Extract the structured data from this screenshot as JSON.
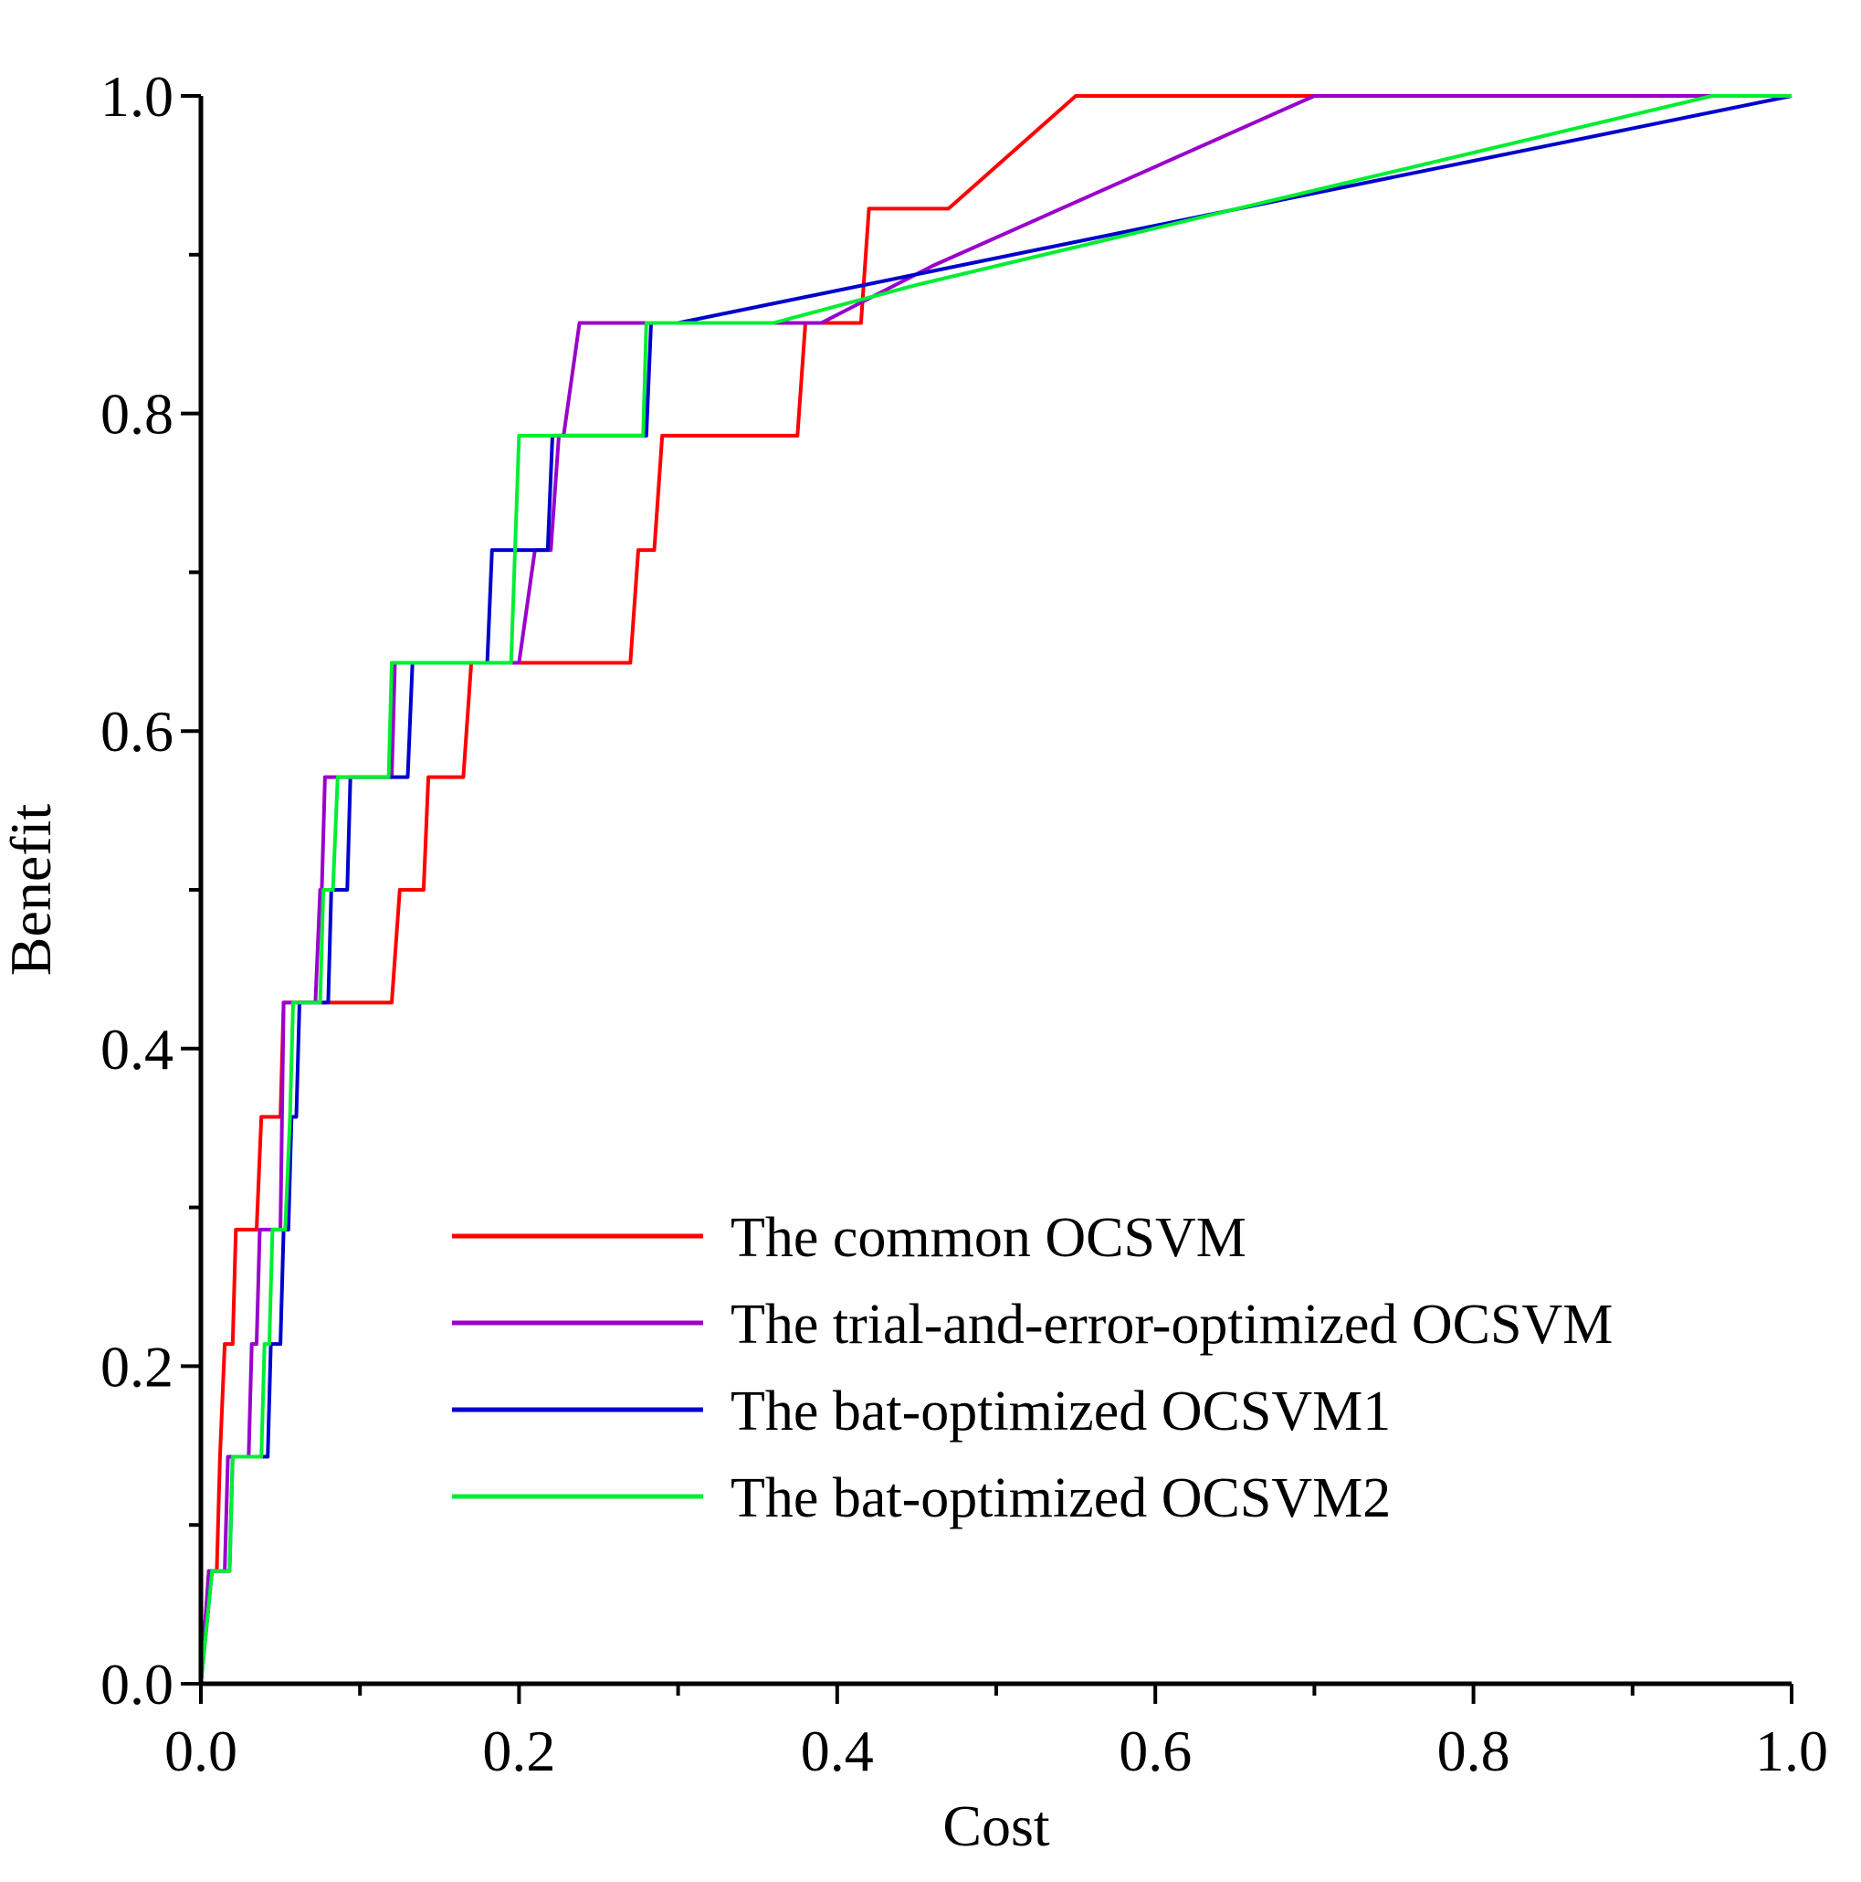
{
  "chart_data": {
    "type": "line",
    "title": "",
    "xlabel": "Cost",
    "ylabel": "Benefit",
    "xlim": [
      0,
      1
    ],
    "ylim": [
      0,
      1
    ],
    "x_ticks": [
      0.0,
      0.2,
      0.4,
      0.6,
      0.8,
      1.0
    ],
    "y_ticks": [
      0.0,
      0.2,
      0.4,
      0.6,
      0.8,
      1.0
    ],
    "x_minor_ticks": [
      0.1,
      0.3,
      0.5,
      0.7,
      0.9
    ],
    "y_minor_ticks": [
      0.1,
      0.3,
      0.5,
      0.7,
      0.9
    ],
    "x_tick_labels": [
      "0.0",
      "0.2",
      "0.4",
      "0.6",
      "0.8",
      "1.0"
    ],
    "y_tick_labels": [
      "0.0",
      "0.2",
      "0.4",
      "0.6",
      "0.8",
      "1.0"
    ],
    "grid": false,
    "legend_position": "lower-right",
    "series": [
      {
        "name": "The common OCSVM",
        "color": "#ff0000",
        "points": [
          [
            0,
            0
          ],
          [
            0.005,
            0.071
          ],
          [
            0.01,
            0.071
          ],
          [
            0.012,
            0.143
          ],
          [
            0.015,
            0.214
          ],
          [
            0.02,
            0.214
          ],
          [
            0.022,
            0.286
          ],
          [
            0.035,
            0.286
          ],
          [
            0.038,
            0.357
          ],
          [
            0.05,
            0.357
          ],
          [
            0.052,
            0.429
          ],
          [
            0.12,
            0.429
          ],
          [
            0.125,
            0.5
          ],
          [
            0.14,
            0.5
          ],
          [
            0.143,
            0.571
          ],
          [
            0.165,
            0.571
          ],
          [
            0.17,
            0.643
          ],
          [
            0.27,
            0.643
          ],
          [
            0.275,
            0.714
          ],
          [
            0.285,
            0.714
          ],
          [
            0.29,
            0.786
          ],
          [
            0.375,
            0.786
          ],
          [
            0.38,
            0.857
          ],
          [
            0.415,
            0.857
          ],
          [
            0.42,
            0.929
          ],
          [
            0.47,
            0.929
          ],
          [
            0.55,
            1.0
          ],
          [
            1.0,
            1.0
          ]
        ]
      },
      {
        "name": "The trial-and-error-optimized OCSVM",
        "color": "#9900cc",
        "points": [
          [
            0,
            0
          ],
          [
            0.005,
            0.071
          ],
          [
            0.015,
            0.071
          ],
          [
            0.017,
            0.143
          ],
          [
            0.03,
            0.143
          ],
          [
            0.032,
            0.214
          ],
          [
            0.035,
            0.214
          ],
          [
            0.037,
            0.286
          ],
          [
            0.05,
            0.286
          ],
          [
            0.052,
            0.429
          ],
          [
            0.072,
            0.429
          ],
          [
            0.075,
            0.5
          ],
          [
            0.076,
            0.5
          ],
          [
            0.078,
            0.571
          ],
          [
            0.12,
            0.571
          ],
          [
            0.122,
            0.643
          ],
          [
            0.2,
            0.643
          ],
          [
            0.21,
            0.714
          ],
          [
            0.22,
            0.714
          ],
          [
            0.225,
            0.786
          ],
          [
            0.228,
            0.786
          ],
          [
            0.238,
            0.857
          ],
          [
            0.39,
            0.857
          ],
          [
            0.46,
            0.893
          ],
          [
            0.7,
            1.0
          ],
          [
            1.0,
            1.0
          ]
        ]
      },
      {
        "name": "The bat-optimized OCSVM1",
        "color": "#0000cc",
        "points": [
          [
            0,
            0
          ],
          [
            0.007,
            0.071
          ],
          [
            0.018,
            0.071
          ],
          [
            0.02,
            0.143
          ],
          [
            0.042,
            0.143
          ],
          [
            0.044,
            0.214
          ],
          [
            0.05,
            0.214
          ],
          [
            0.052,
            0.286
          ],
          [
            0.055,
            0.286
          ],
          [
            0.057,
            0.357
          ],
          [
            0.06,
            0.357
          ],
          [
            0.062,
            0.429
          ],
          [
            0.08,
            0.429
          ],
          [
            0.082,
            0.5
          ],
          [
            0.092,
            0.5
          ],
          [
            0.094,
            0.571
          ],
          [
            0.13,
            0.571
          ],
          [
            0.133,
            0.643
          ],
          [
            0.18,
            0.643
          ],
          [
            0.183,
            0.714
          ],
          [
            0.218,
            0.714
          ],
          [
            0.221,
            0.786
          ],
          [
            0.28,
            0.786
          ],
          [
            0.283,
            0.857
          ],
          [
            0.3,
            0.857
          ],
          [
            1.0,
            1.0
          ]
        ]
      },
      {
        "name": "The bat-optimized OCSVM2",
        "color": "#00ee33",
        "points": [
          [
            0,
            0
          ],
          [
            0.007,
            0.071
          ],
          [
            0.018,
            0.071
          ],
          [
            0.02,
            0.143
          ],
          [
            0.038,
            0.143
          ],
          [
            0.04,
            0.214
          ],
          [
            0.043,
            0.214
          ],
          [
            0.045,
            0.286
          ],
          [
            0.053,
            0.286
          ],
          [
            0.056,
            0.357
          ],
          [
            0.058,
            0.429
          ],
          [
            0.075,
            0.429
          ],
          [
            0.077,
            0.5
          ],
          [
            0.083,
            0.5
          ],
          [
            0.086,
            0.571
          ],
          [
            0.118,
            0.571
          ],
          [
            0.12,
            0.643
          ],
          [
            0.195,
            0.643
          ],
          [
            0.2,
            0.786
          ],
          [
            0.278,
            0.786
          ],
          [
            0.28,
            0.857
          ],
          [
            0.36,
            0.857
          ],
          [
            0.45,
            0.881
          ],
          [
            0.95,
            1.0
          ],
          [
            1.0,
            1.0
          ]
        ]
      }
    ]
  }
}
